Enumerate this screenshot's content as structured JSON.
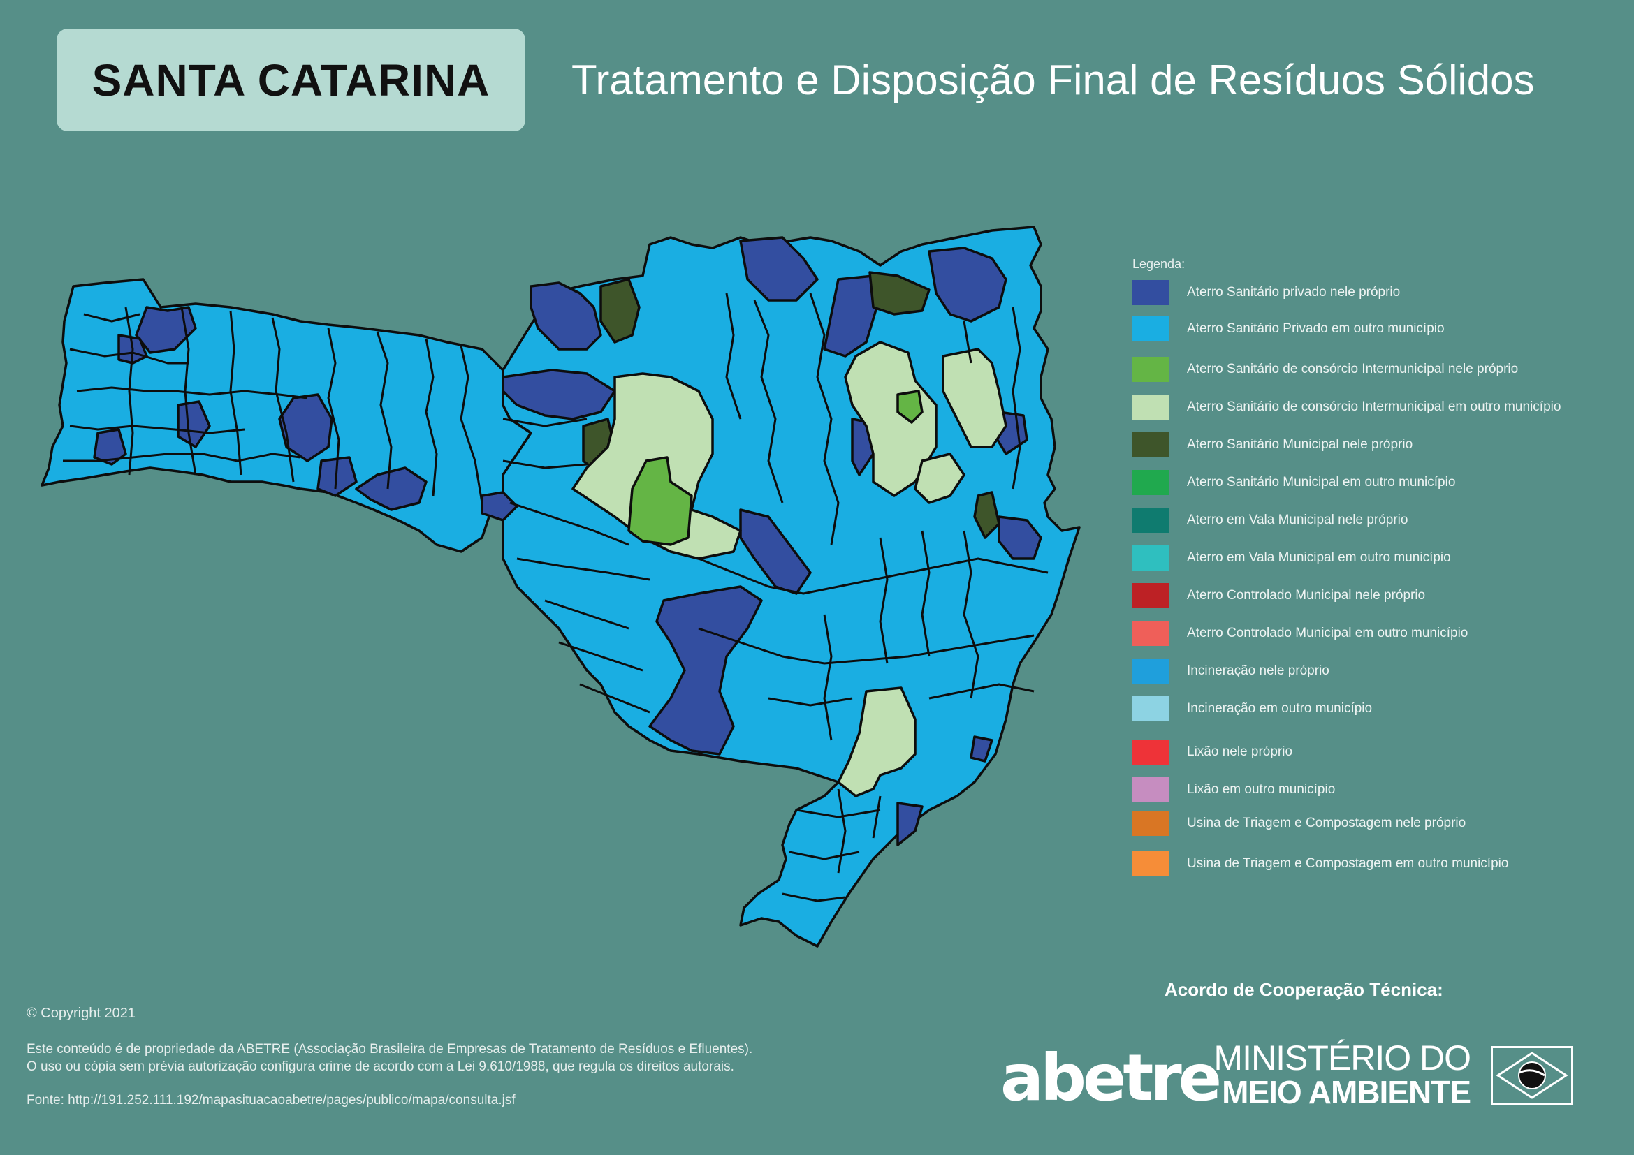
{
  "header": {
    "state_name": "SANTA CATARINA",
    "title": "Tratamento e Disposição Final de Resíduos Sólidos"
  },
  "map": {
    "region": "Santa Catarina",
    "palette": {
      "private_own": "#334ea0",
      "private_other": "#1aaee2",
      "consortium_own": "#64b545",
      "consortium_other": "#c0e0b3",
      "municipal_own": "#3e552a",
      "municipal_other": "#20a94e",
      "border": "#0d0d0d"
    }
  },
  "legend": {
    "title": "Legenda:",
    "items": [
      {
        "label": "Aterro Sanitário privado nele próprio",
        "color": "#334ea0"
      },
      {
        "label": "Aterro Sanitário Privado em outro município",
        "color": "#1aaee2"
      },
      {
        "label": "Aterro Sanitário de consórcio Intermunicipal nele próprio",
        "color": "#64b545"
      },
      {
        "label": "Aterro Sanitário de consórcio Intermunicipal em outro município",
        "color": "#c0e0b3"
      },
      {
        "label": "Aterro Sanitário Municipal nele próprio",
        "color": "#3e552a"
      },
      {
        "label": "Aterro Sanitário Municipal em outro município",
        "color": "#20a94e"
      },
      {
        "label": "Aterro em Vala Municipal  nele próprio",
        "color": "#0f7b6f"
      },
      {
        "label": "Aterro em Vala Municipal em outro município",
        "color": "#2fbfbf"
      },
      {
        "label": "Aterro Controlado Municipal nele próprio",
        "color": "#bd2125"
      },
      {
        "label": "Aterro Controlado Municipal em outro município",
        "color": "#ef5f59"
      },
      {
        "label": "Incineração nele próprio",
        "color": "#1f9fdc"
      },
      {
        "label": "Incineração em outro município",
        "color": "#8dd3e3"
      },
      {
        "label": "Lixão nele próprio",
        "color": "#ee3338"
      },
      {
        "label": "Lixão em outro município",
        "color": "#c68dc0"
      },
      {
        "label": "Usina de Triagem e Compostagem nele próprio",
        "color": "#d97624"
      },
      {
        "label": "Usina de Triagem e Compostagem em outro município",
        "color": "#f68d38"
      }
    ]
  },
  "footer": {
    "copyright": "© Copyright 2021",
    "notice_line1": "Este conteúdo é de propriedade da ABETRE (Associação Brasileira de Empresas de Tratamento de Resíduos e Efluentes).",
    "notice_line2": "O uso ou cópia sem prévia autorização configura crime de acordo com a Lei 9.610/1988, que regula os direitos autorais.",
    "source": "Fonte: http://191.252.111.192/mapasituacaoabetre/pages/publico/mapa/consulta.jsf"
  },
  "partners": {
    "heading": "Acordo de Cooperação Técnica:",
    "abetre_logo": "abetre",
    "ministry_line1": "MINISTÉRIO DO",
    "ministry_line2": "MEIO AMBIENTE"
  }
}
